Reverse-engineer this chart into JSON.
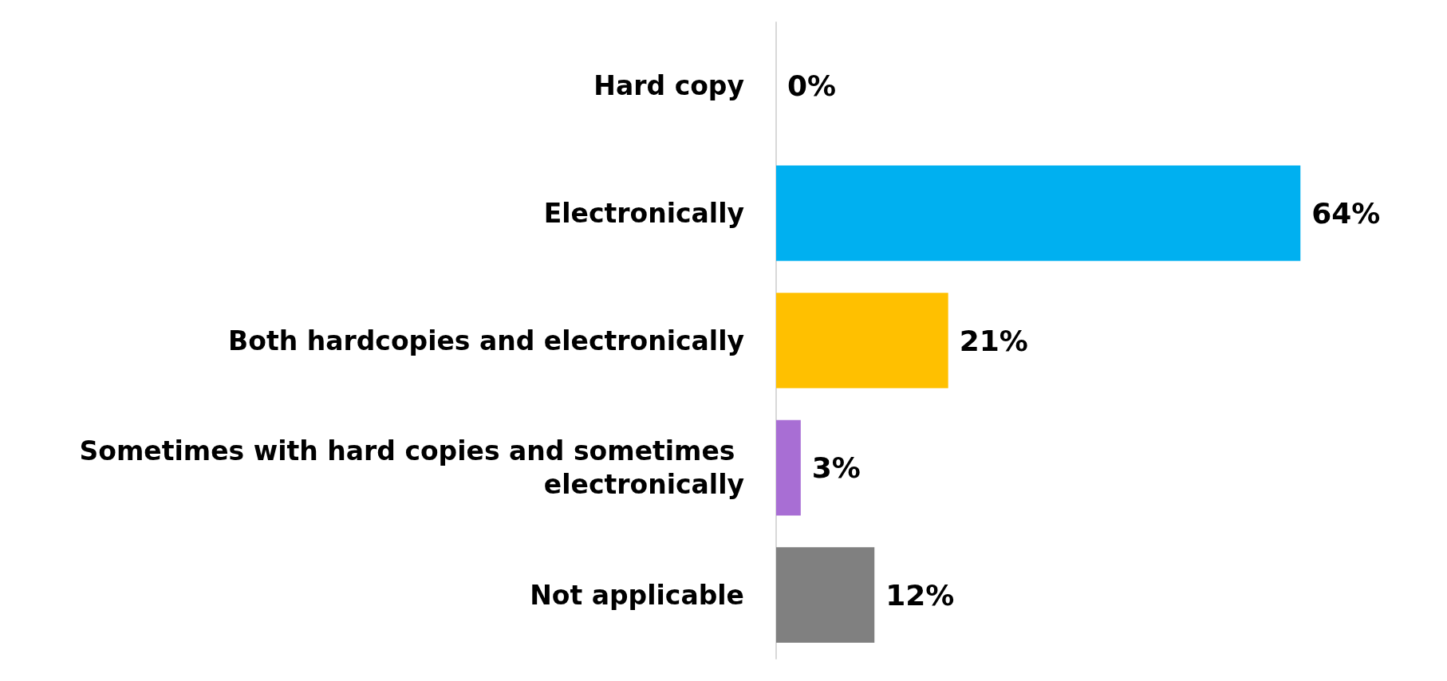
{
  "chart_data": {
    "type": "bar",
    "orientation": "horizontal",
    "categories": [
      "Hard copy",
      "Electronically",
      "Both hardcopies and electronically",
      "Sometimes with hard copies and sometimes electronically",
      "Not applicable"
    ],
    "values": [
      0,
      64,
      21,
      3,
      12
    ],
    "colors": [
      "#92d050",
      "#00b0f0",
      "#ffc000",
      "#a86ed4",
      "#808080"
    ],
    "value_labels": [
      "0%",
      "64%",
      "21%",
      "3%",
      "12%"
    ]
  }
}
